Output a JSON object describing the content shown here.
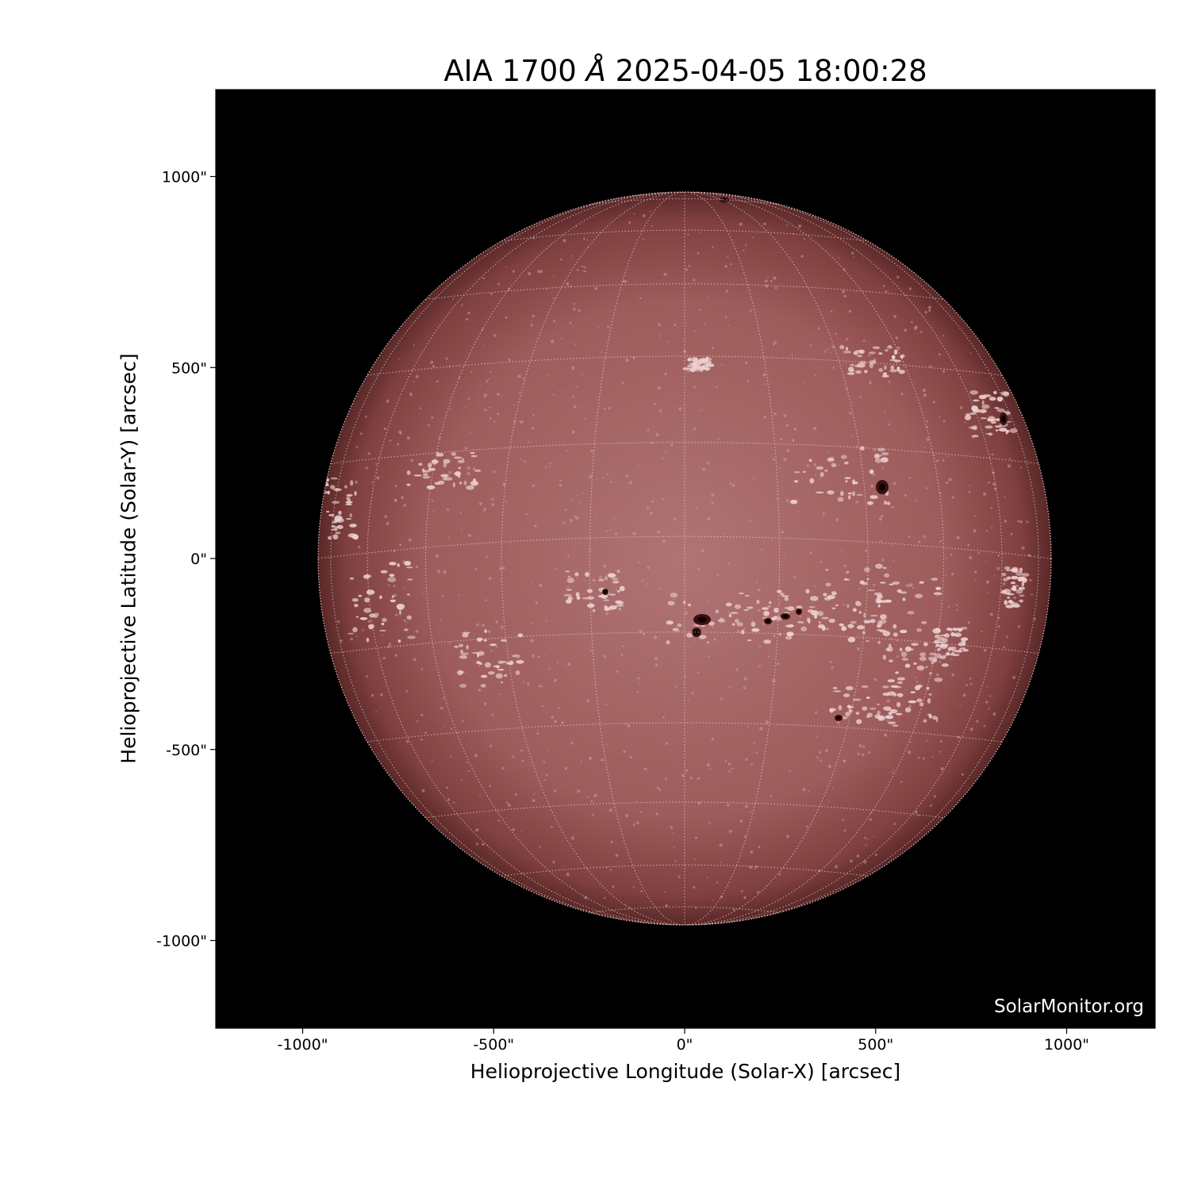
{
  "figure": {
    "title_prefix": "AIA 1700",
    "title_unit": "Å",
    "title_timestamp": "2025-04-05 18:00:28",
    "xlabel": "Helioprojective Longitude (Solar-X) [arcsec]",
    "ylabel": "Helioprojective Latitude (Solar-Y) [arcsec]",
    "x_ticks": [
      "-1000\"",
      "-500\"",
      "0\"",
      "500\"",
      "1000\""
    ],
    "y_ticks": [
      "1000\"",
      "500\"",
      "0\"",
      "-500\"",
      "-1000\""
    ],
    "x_tick_values": [
      -1000,
      -500,
      0,
      500,
      1000
    ],
    "y_tick_values": [
      1000,
      500,
      0,
      -500,
      -1000
    ],
    "watermark": "SolarMonitor.org",
    "grid": "on",
    "colors": {
      "background": "#000000",
      "disk": "#9e5a5a",
      "plage": "#e8c8c8",
      "spot": "#1a0505"
    }
  }
}
